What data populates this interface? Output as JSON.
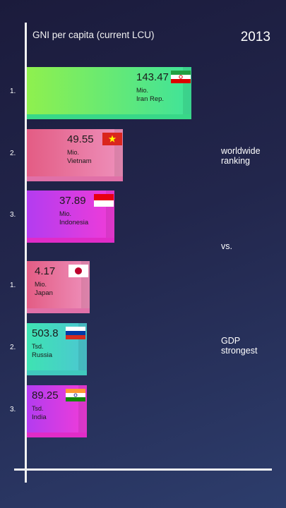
{
  "chart_data": {
    "type": "bar",
    "orientation": "horizontal",
    "title": "GNI per capita (current LCU)",
    "year": "2013",
    "groups": [
      {
        "label": [
          "worldwide",
          "ranking"
        ],
        "entries": [
          {
            "rank": "1.",
            "value": "143.47",
            "unit": "Mio.",
            "country": "Iran Rep.",
            "flag": "iran-flag",
            "color_start": "#8ff04e",
            "color_end": "#3fe39a",
            "base_color": "#38d888"
          },
          {
            "rank": "2.",
            "value": "49.55",
            "unit": "Mio.",
            "country": "Vietnam",
            "flag": "vietnam-flag",
            "color_start": "#e35c84",
            "color_end": "#ee90bb",
            "base_color": "#e070a8"
          },
          {
            "rank": "3.",
            "value": "37.89",
            "unit": "Mio.",
            "country": "Indonesia",
            "flag": "indonesia-flag",
            "color_start": "#b33cf0",
            "color_end": "#f03cd8",
            "base_color": "#e02cc8"
          }
        ]
      },
      {
        "label": [
          "GDP",
          "strongest"
        ],
        "entries": [
          {
            "rank": "1.",
            "value": "4.17",
            "unit": "Mio.",
            "country": "Japan",
            "flag": "japan-flag",
            "color_start": "#e35c84",
            "color_end": "#ee90bb",
            "base_color": "#e070a8"
          },
          {
            "rank": "2.",
            "value": "503.8",
            "unit": "Tsd.",
            "country": "Russia",
            "flag": "russia-flag",
            "color_start": "#3ee3b2",
            "color_end": "#4cc7d2",
            "base_color": "#40c8bd"
          },
          {
            "rank": "3.",
            "value": "89.25",
            "unit": "Tsd.",
            "country": "India",
            "flag": "india-flag",
            "color_start": "#b33cf0",
            "color_end": "#f03cd8",
            "base_color": "#e02cc8"
          }
        ]
      }
    ],
    "separator": "vs.",
    "grid": false,
    "legend": "none"
  }
}
